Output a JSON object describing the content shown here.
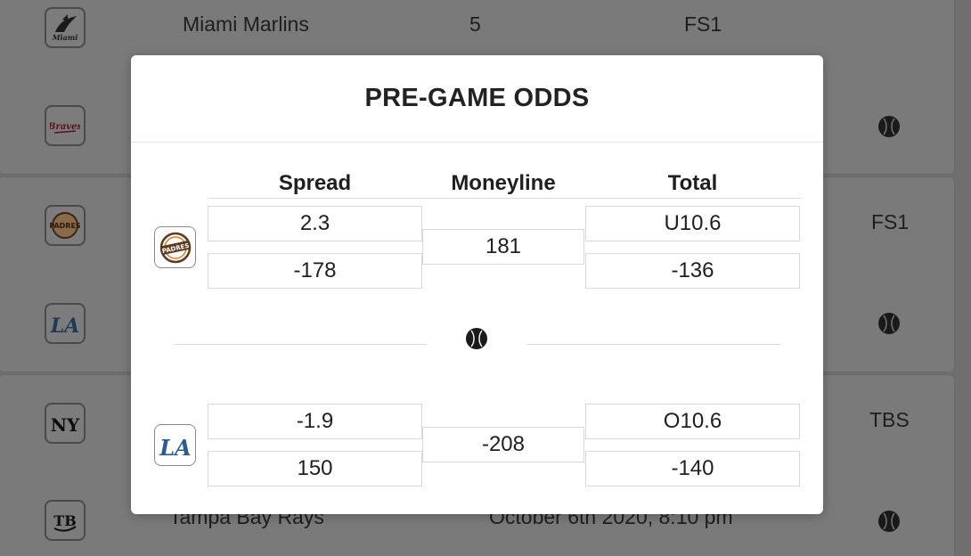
{
  "background": {
    "rows": [
      {
        "team": "Miami Marlins",
        "score": "5",
        "network": "FS1",
        "logo_icon": "marlins-logo-icon"
      },
      {
        "logo_icon": "braves-logo-icon",
        "status_icon": "baseball-icon"
      },
      {
        "network": "FS1",
        "logo_icon": "padres-logo-icon"
      },
      {
        "logo_icon": "dodgers-logo-icon",
        "status_icon": "baseball-icon"
      },
      {
        "network": "TBS",
        "logo_icon": "yankees-logo-icon"
      },
      {
        "team": "Tampa Bay Rays",
        "datetime": "October 6th 2020, 8:10 pm",
        "logo_icon": "rays-logo-icon",
        "status_icon": "baseball-icon"
      }
    ]
  },
  "modal": {
    "title": "PRE-GAME ODDS",
    "columns": {
      "spread": "Spread",
      "moneyline": "Moneyline",
      "total": "Total"
    },
    "divider_icon": "baseball-icon",
    "teams": [
      {
        "logo_icon": "padres-logo-icon",
        "logo_text": "PADRES",
        "spread": [
          "2.3",
          "-178"
        ],
        "moneyline": "181",
        "total": [
          "U10.6",
          "-136"
        ]
      },
      {
        "logo_icon": "dodgers-logo-icon",
        "logo_text": "LA",
        "spread": [
          "-1.9",
          "150"
        ],
        "moneyline": "-208",
        "total": [
          "O10.6",
          "-140"
        ]
      }
    ]
  },
  "colors": {
    "overlay": "#6f6f6f",
    "modal_bg": "#ffffff",
    "dodgers_blue": "#2a5d8c",
    "padres_brown": "#5b3a1e",
    "padres_orange": "#e07a2a"
  }
}
